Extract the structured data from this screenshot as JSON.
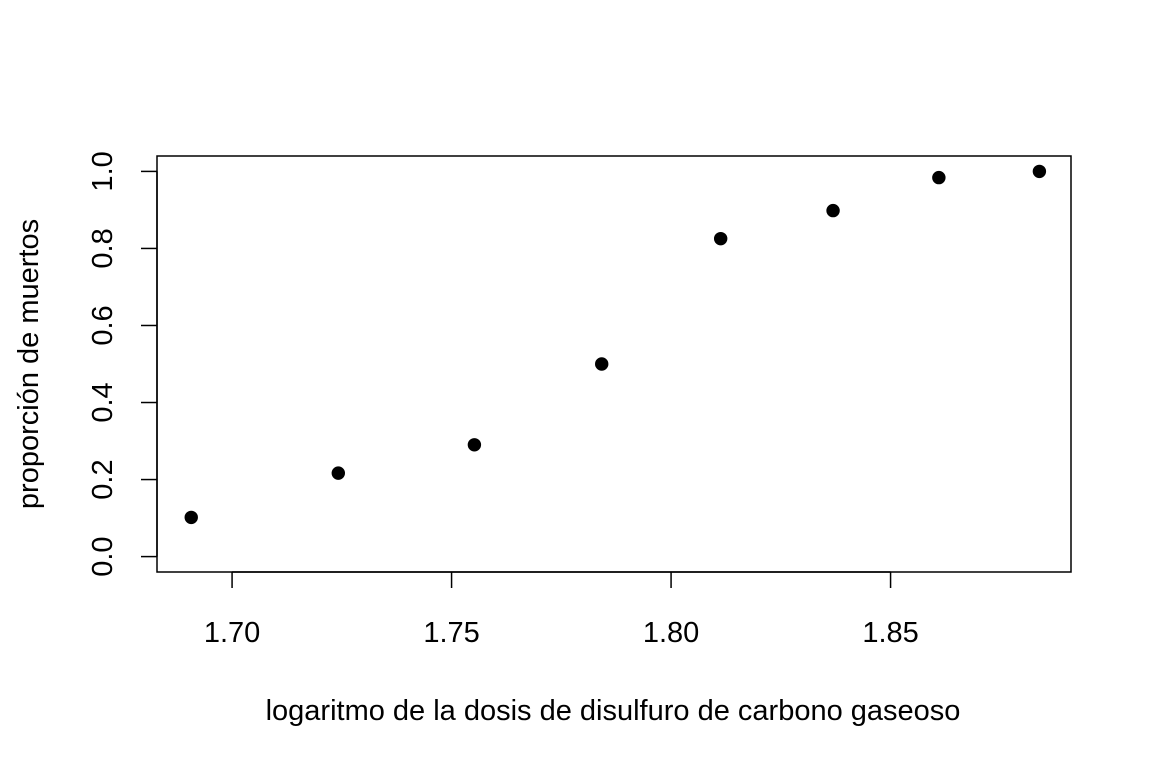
{
  "chart_data": {
    "type": "scatter",
    "xlabel": "logaritmo de la dosis de disulfuro de carbono gaseoso",
    "ylabel": "proporción de muertos",
    "xlim": [
      1.6829,
      1.8911
    ],
    "ylim": [
      -0.04,
      1.04
    ],
    "x_ticks": [
      1.7,
      1.75,
      1.8,
      1.85
    ],
    "x_tick_labels": [
      "1.70",
      "1.75",
      "1.80",
      "1.85"
    ],
    "y_ticks": [
      0.0,
      0.2,
      0.4,
      0.6,
      0.8,
      1.0
    ],
    "y_tick_labels": [
      "0.0",
      "0.2",
      "0.4",
      "0.6",
      "0.8",
      "1.0"
    ],
    "grid": false,
    "box": true,
    "marker": "filled-circle",
    "marker_color": "#000000",
    "points": [
      {
        "x": 1.6907,
        "y": 0.1017
      },
      {
        "x": 1.7242,
        "y": 0.2167
      },
      {
        "x": 1.7552,
        "y": 0.2903
      },
      {
        "x": 1.7842,
        "y": 0.5
      },
      {
        "x": 1.8113,
        "y": 0.8254
      },
      {
        "x": 1.8369,
        "y": 0.8983
      },
      {
        "x": 1.861,
        "y": 0.9839
      },
      {
        "x": 1.8839,
        "y": 1.0
      }
    ]
  }
}
